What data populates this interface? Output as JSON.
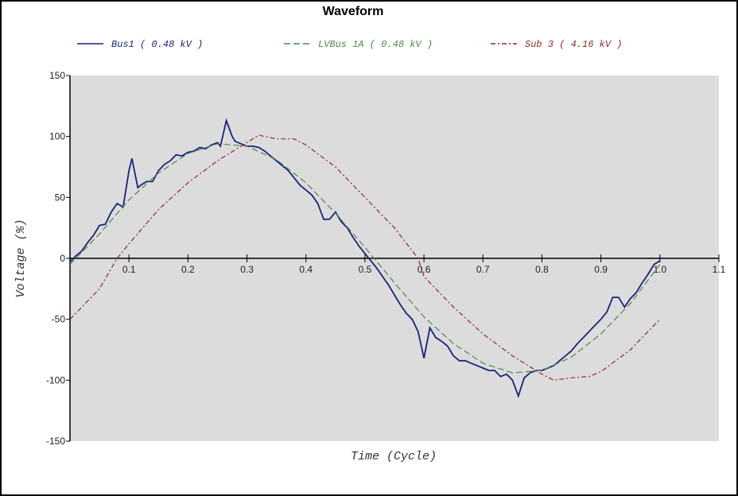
{
  "chart_data": {
    "type": "line",
    "title": "Waveform",
    "x_label": "Time (Cycle)",
    "y_label": "Voltage (%)",
    "xlim": [
      0,
      1.1
    ],
    "ylim": [
      -150,
      150
    ],
    "xticks": [
      0.1,
      0.2,
      0.3,
      0.4,
      0.5,
      0.6,
      0.7,
      0.8,
      0.9,
      {
        "value": 1,
        "label": "1.0"
      },
      1.1
    ],
    "yticks": [
      -150,
      -100,
      -50,
      0,
      50,
      100,
      150
    ],
    "series": [
      {
        "name": "Bus1 ( 0.48 kV )",
        "color": "#1a237e",
        "style": "solid",
        "x": [
          0,
          0.01,
          0.02,
          0.03,
          0.04,
          0.05,
          0.06,
          0.07,
          0.08,
          0.09,
          0.1,
          0.105,
          0.11,
          0.115,
          0.12,
          0.13,
          0.14,
          0.15,
          0.16,
          0.17,
          0.18,
          0.19,
          0.2,
          0.21,
          0.22,
          0.23,
          0.24,
          0.25,
          0.255,
          0.265,
          0.275,
          0.28,
          0.29,
          0.3,
          0.31,
          0.32,
          0.33,
          0.34,
          0.35,
          0.36,
          0.37,
          0.38,
          0.39,
          0.4,
          0.41,
          0.42,
          0.43,
          0.44,
          0.45,
          0.46,
          0.47,
          0.48,
          0.49,
          0.5,
          0.51,
          0.52,
          0.53,
          0.54,
          0.55,
          0.56,
          0.57,
          0.58,
          0.59,
          0.6,
          0.61,
          0.62,
          0.63,
          0.64,
          0.65,
          0.66,
          0.67,
          0.68,
          0.69,
          0.7,
          0.71,
          0.72,
          0.73,
          0.74,
          0.75,
          0.76,
          0.77,
          0.78,
          0.79,
          0.8,
          0.81,
          0.82,
          0.83,
          0.84,
          0.85,
          0.86,
          0.87,
          0.88,
          0.89,
          0.9,
          0.91,
          0.92,
          0.93,
          0.94,
          0.95,
          0.96,
          0.97,
          0.98,
          0.99,
          1.0
        ],
        "values": [
          -3,
          2,
          6,
          13,
          19,
          27,
          28,
          38,
          45,
          42,
          72,
          82,
          70,
          58,
          60,
          63,
          63,
          72,
          77,
          80,
          85,
          84,
          87,
          88,
          91,
          90,
          93,
          95,
          92,
          113,
          100,
          96,
          94,
          92,
          92,
          91,
          88,
          84,
          80,
          76,
          72,
          66,
          60,
          56,
          52,
          45,
          32,
          32,
          38,
          30,
          25,
          17,
          10,
          4,
          -2,
          -8,
          -15,
          -22,
          -30,
          -38,
          -45,
          -50,
          -60,
          -82,
          -57,
          -65,
          -68,
          -72,
          -80,
          -84,
          -84,
          -86,
          -88,
          -90,
          -92,
          -92,
          -97,
          -95,
          -100,
          -113,
          -98,
          -94,
          -92,
          -92,
          -90,
          -88,
          -84,
          -80,
          -76,
          -70,
          -65,
          -60,
          -55,
          -50,
          -44,
          -32,
          -32,
          -40,
          -33,
          -28,
          -20,
          -13,
          -5,
          -2
        ]
      },
      {
        "name": "LVBus 1A ( 0.48 kV )",
        "color": "#4a8a4a",
        "style": "dashed",
        "x": [
          0,
          0.05,
          0.1,
          0.15,
          0.2,
          0.25,
          0.3,
          0.35,
          0.4,
          0.45,
          0.5,
          0.55,
          0.6,
          0.65,
          0.7,
          0.75,
          0.8,
          0.85,
          0.9,
          0.95,
          1.0
        ],
        "values": [
          -5,
          20,
          48,
          70,
          86,
          94,
          92,
          81,
          62,
          37,
          9,
          -20,
          -48,
          -70,
          -86,
          -94,
          -92,
          -81,
          -62,
          -37,
          -5
        ]
      },
      {
        "name": "Sub 3 ( 4.16 kV )",
        "color": "#8b2a2a",
        "style": "dashdot",
        "x": [
          0,
          0.05,
          0.08,
          0.1,
          0.15,
          0.2,
          0.25,
          0.3,
          0.32,
          0.35,
          0.38,
          0.4,
          0.45,
          0.5,
          0.55,
          0.59,
          0.6,
          0.65,
          0.7,
          0.75,
          0.8,
          0.82,
          0.85,
          0.88,
          0.9,
          0.95,
          1.0
        ],
        "values": [
          -50,
          -25,
          0,
          12,
          40,
          62,
          80,
          95,
          101,
          98,
          98,
          93,
          75,
          50,
          25,
          0,
          -15,
          -40,
          -62,
          -80,
          -95,
          -100,
          -98,
          -97,
          -93,
          -75,
          -50
        ]
      }
    ]
  }
}
